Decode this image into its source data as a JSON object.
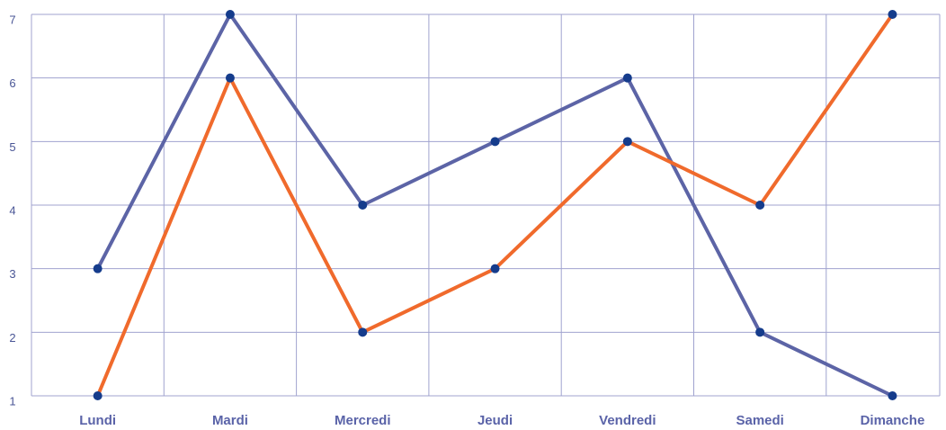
{
  "chart_data": {
    "type": "line",
    "categories": [
      "Lundi",
      "Mardi",
      "Mercredi",
      "Jeudi",
      "Vendredi",
      "Samedi",
      "Dimanche"
    ],
    "series": [
      {
        "color": "#5c64a6",
        "values": [
          3,
          7,
          4,
          5,
          6,
          2,
          1
        ]
      },
      {
        "color": "#f06a2c",
        "values": [
          1,
          6,
          2,
          3,
          5,
          4,
          7
        ]
      }
    ],
    "marker_color": "#153c8c",
    "ylim": [
      1,
      7
    ],
    "yticks": [
      1,
      2,
      3,
      4,
      5,
      6,
      7
    ],
    "grid": true
  }
}
